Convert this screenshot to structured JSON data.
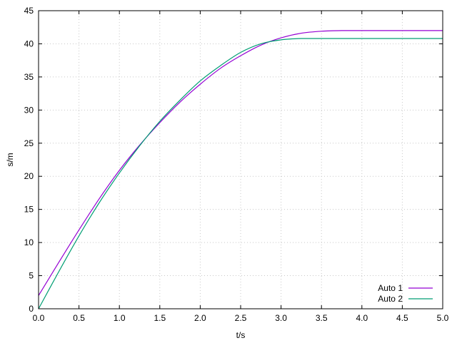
{
  "chart_data": {
    "type": "line",
    "title": "",
    "xlabel": "t/s",
    "ylabel": "s/m",
    "xlim": [
      0,
      5
    ],
    "ylim": [
      0,
      45
    ],
    "xticks": [
      0,
      0.5,
      1,
      1.5,
      2,
      2.5,
      3,
      3.5,
      4,
      4.5,
      5
    ],
    "xtick_labels": [
      "0.0",
      "0.5",
      "1.0",
      "1.5",
      "2.0",
      "2.5",
      "3.0",
      "3.5",
      "4.0",
      "4.5",
      "5.0"
    ],
    "yticks": [
      0,
      5,
      10,
      15,
      20,
      25,
      30,
      35,
      40,
      45
    ],
    "ytick_labels": [
      "0",
      "5",
      "10",
      "15",
      "20",
      "25",
      "30",
      "35",
      "40",
      "45"
    ],
    "grid": true,
    "legend_position": "bottom-right",
    "series": [
      {
        "name": "Auto 1",
        "color": "#9400d3",
        "x": [
          0,
          0.25,
          0.5,
          0.75,
          1.0,
          1.25,
          1.5,
          1.75,
          2.0,
          2.25,
          2.5,
          2.75,
          3.0,
          3.25,
          3.5,
          3.75,
          4.0,
          4.5,
          5.0
        ],
        "y": [
          2.0,
          7.0,
          11.9,
          16.6,
          20.9,
          24.7,
          28.1,
          31.2,
          33.9,
          36.3,
          38.2,
          39.8,
          40.9,
          41.6,
          41.9,
          42.0,
          42.0,
          42.0,
          42.0
        ]
      },
      {
        "name": "Auto 2",
        "color": "#009e73",
        "x": [
          0,
          0.25,
          0.5,
          0.75,
          1.0,
          1.25,
          1.5,
          1.75,
          2.0,
          2.25,
          2.5,
          2.75,
          3.0,
          3.25,
          3.5,
          3.75,
          4.0,
          4.5,
          5.0
        ],
        "y": [
          0.0,
          5.6,
          11.0,
          16.0,
          20.5,
          24.6,
          28.3,
          31.5,
          34.4,
          36.7,
          38.7,
          40.0,
          40.6,
          40.8,
          40.8,
          40.8,
          40.8,
          40.8,
          40.8
        ]
      }
    ]
  }
}
